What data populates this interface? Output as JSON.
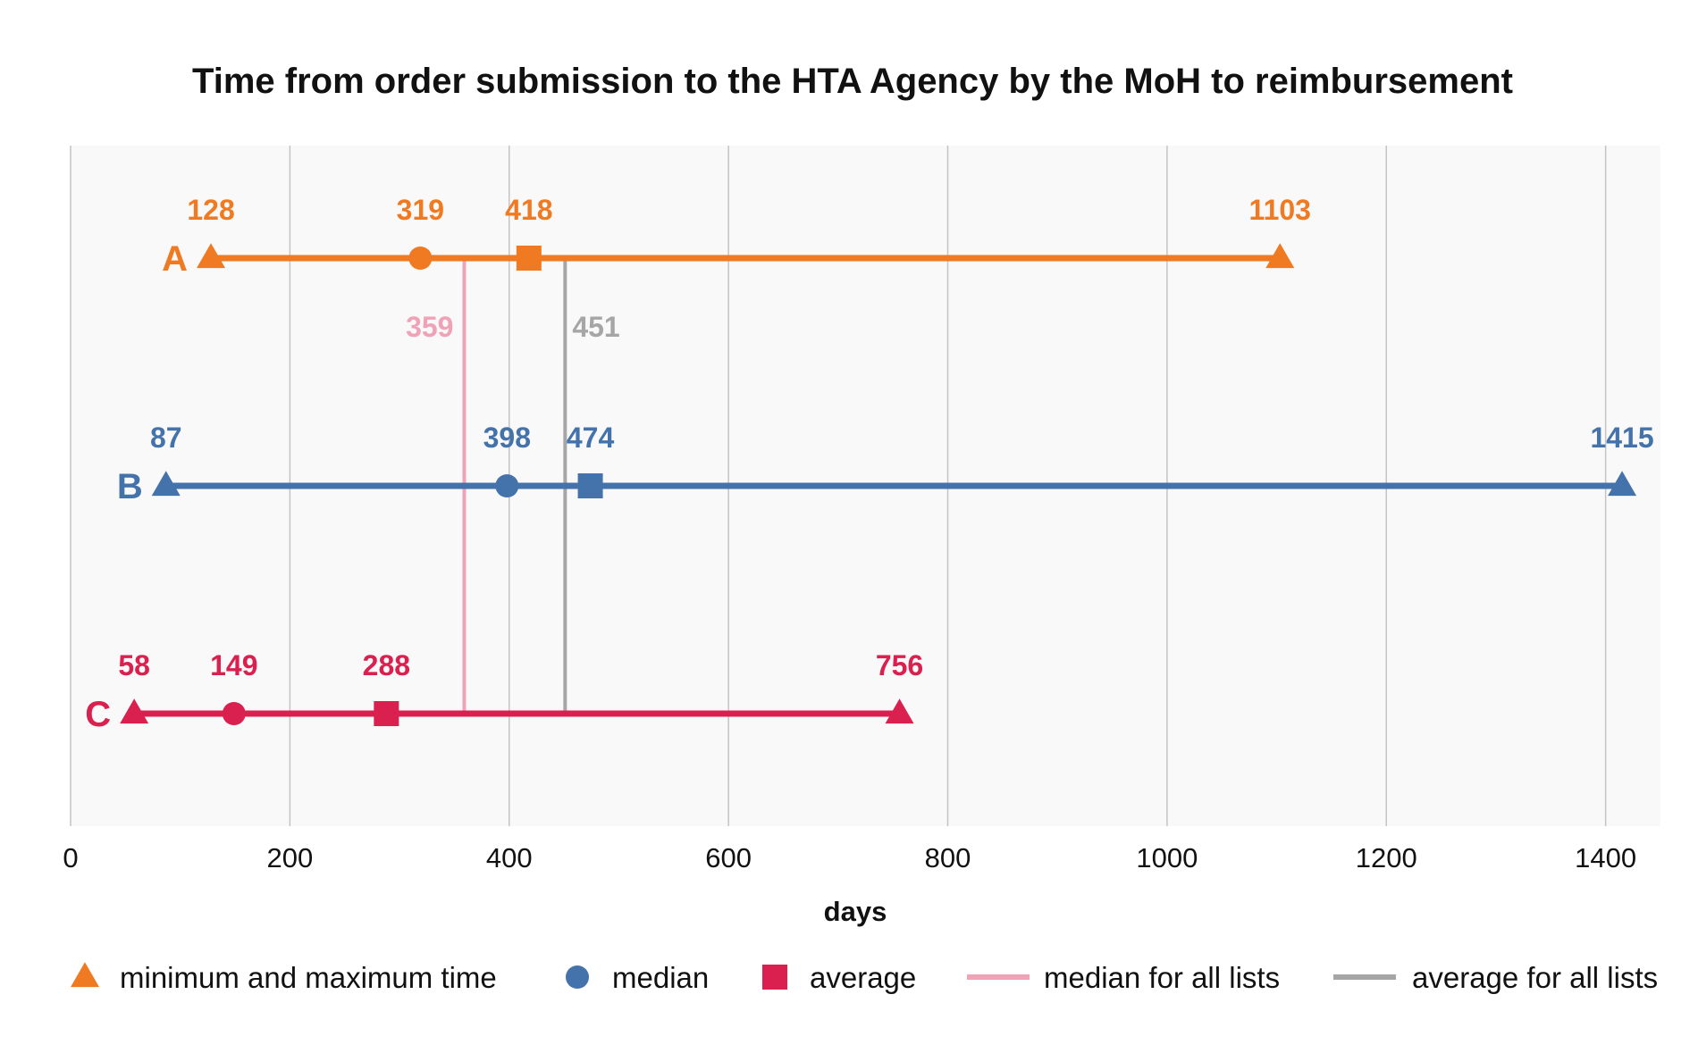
{
  "chart_data": {
    "type": "range-dot",
    "title": "Time from order submission to the HTA Agency by the MoH to reimbursement",
    "xlabel": "days",
    "xlim": [
      0,
      1450
    ],
    "xticks": [
      0,
      200,
      400,
      600,
      800,
      1000,
      1200,
      1400
    ],
    "grid": true,
    "legend_position": "bottom",
    "series": [
      {
        "name": "A",
        "color": "#f07a22",
        "min": 128,
        "median": 319,
        "average": 418,
        "max": 1103,
        "labels": {
          "min": "128",
          "median": "319",
          "average": "418",
          "max": "1103"
        }
      },
      {
        "name": "B",
        "color": "#4472aa",
        "min": 87,
        "median": 398,
        "average": 474,
        "max": 1415,
        "labels": {
          "min": "87",
          "median": "398",
          "average": "474",
          "max": "1415"
        }
      },
      {
        "name": "C",
        "color": "#d9204f",
        "min": 58,
        "median": 149,
        "average": 288,
        "max": 756,
        "labels": {
          "min": "58",
          "median": "149",
          "average": "288",
          "max": "756"
        }
      }
    ],
    "reference_lines": [
      {
        "key": "median_all",
        "value": 359,
        "label": "359",
        "color": "#f0a3b7"
      },
      {
        "key": "average_all",
        "value": 451,
        "label": "451",
        "color": "#a6a6a6"
      }
    ],
    "legend": [
      {
        "key": "minmax",
        "label": "minimum and maximum time",
        "marker": "triangle",
        "color": "#f07a22"
      },
      {
        "key": "median",
        "label": "median",
        "marker": "circle",
        "color": "#4472aa"
      },
      {
        "key": "average",
        "label": "average",
        "marker": "square",
        "color": "#d9204f"
      },
      {
        "key": "median_all",
        "label": "median for all lists",
        "marker": "line",
        "color": "#f0a3b7"
      },
      {
        "key": "average_all",
        "label": "average for all lists",
        "marker": "line",
        "color": "#a6a6a6"
      }
    ]
  }
}
